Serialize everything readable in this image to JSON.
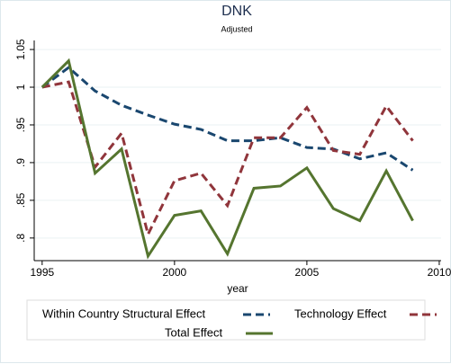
{
  "chart_data": {
    "type": "line",
    "title": "DNK",
    "subtitle": "Adjusted",
    "x_label": "year",
    "x": [
      1995,
      1996,
      1997,
      1998,
      1999,
      2000,
      2001,
      2002,
      2003,
      2004,
      2005,
      2006,
      2007,
      2008,
      2009
    ],
    "series": [
      {
        "name": "Within Country Structural Effect",
        "color": "#1a476f",
        "dash": true,
        "values": [
          1.0,
          1.026,
          0.995,
          0.976,
          0.963,
          0.951,
          0.944,
          0.929,
          0.929,
          0.933,
          0.92,
          0.918,
          0.905,
          0.913,
          0.89
        ]
      },
      {
        "name": "Technology Effect",
        "color": "#90353b",
        "dash": true,
        "values": [
          1.0,
          1.007,
          0.894,
          0.939,
          0.805,
          0.876,
          0.886,
          0.843,
          0.933,
          0.933,
          0.973,
          0.916,
          0.911,
          0.975,
          0.929
        ]
      },
      {
        "name": "Total Effect",
        "color": "#55752f",
        "dash": false,
        "values": [
          1.0,
          1.035,
          0.886,
          0.918,
          0.776,
          0.83,
          0.836,
          0.779,
          0.866,
          0.869,
          0.893,
          0.839,
          0.823,
          0.889,
          0.823
        ]
      }
    ],
    "xlim": [
      1994.7,
      2010.07
    ],
    "xticks": [
      1995,
      2000,
      2005,
      2010
    ],
    "ylim": [
      0.77,
      1.062
    ],
    "yticks": [
      {
        "value": 0.8,
        "label": ".8"
      },
      {
        "value": 0.85,
        "label": ".85"
      },
      {
        "value": 0.9,
        "label": ".9"
      },
      {
        "value": 0.95,
        "label": ".95"
      },
      1,
      1.05
    ],
    "grid": true
  }
}
